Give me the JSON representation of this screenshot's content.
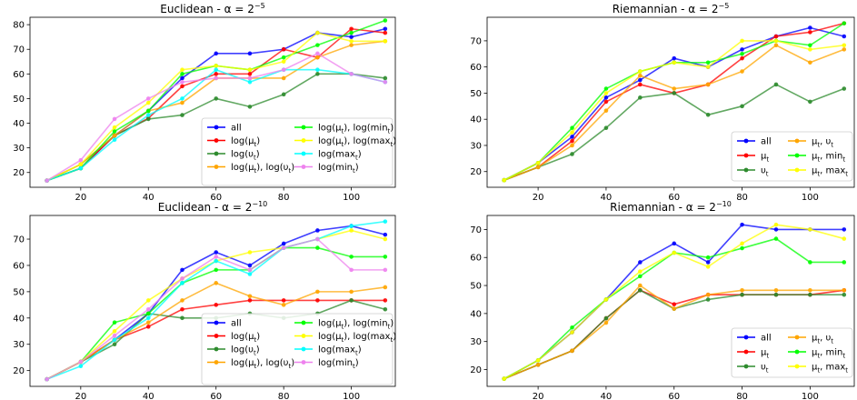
{
  "figure": {
    "panel_count": 4
  },
  "chart_data": [
    {
      "type": "line",
      "title": "Euclidean - α = 2",
      "title_sup": "−5",
      "x": [
        10,
        20,
        30,
        40,
        50,
        60,
        70,
        80,
        90,
        100,
        110
      ],
      "xlim": [
        5,
        113
      ],
      "ylim": [
        14,
        83
      ],
      "xticks": [
        20,
        40,
        60,
        80,
        100
      ],
      "yticks": [
        20,
        30,
        40,
        50,
        60,
        70,
        80
      ],
      "legend": {
        "position": "lower right",
        "ncol": 2
      },
      "series": [
        {
          "name": "all",
          "color": "#0000ff",
          "values": [
            16.7,
            21.7,
            35.0,
            45.0,
            58.3,
            68.3,
            68.3,
            70.0,
            76.7,
            75.0,
            78.3
          ]
        },
        {
          "name": "log(μ_t)",
          "color": "#ff0000",
          "values": [
            16.7,
            21.7,
            35.0,
            42.0,
            55.0,
            60.0,
            60.0,
            70.0,
            66.7,
            78.3,
            76.7
          ]
        },
        {
          "name": "log(υ_t)",
          "color": "#2e8b2e",
          "values": [
            16.7,
            23.3,
            35.0,
            41.7,
            43.3,
            50.0,
            46.7,
            51.7,
            60.0,
            60.0,
            58.3
          ]
        },
        {
          "name": "log(μ_t), log(υ_t)",
          "color": "#ffa500",
          "values": [
            16.7,
            23.3,
            35.0,
            45.0,
            48.3,
            58.3,
            58.3,
            58.3,
            66.7,
            71.7,
            73.3
          ]
        },
        {
          "name": "log(μ_t), log(min_t)",
          "color": "#00ff00",
          "values": [
            16.7,
            21.7,
            36.7,
            45.0,
            60.0,
            63.3,
            61.7,
            66.7,
            71.7,
            76.7,
            81.7
          ]
        },
        {
          "name": "log(μ_t), log(max_t)",
          "color": "#ffff00",
          "values": [
            16.7,
            23.3,
            38.3,
            48.3,
            61.7,
            63.3,
            61.7,
            65.0,
            76.7,
            73.3,
            73.3
          ]
        },
        {
          "name": "log(max_t)",
          "color": "#00ffff",
          "values": [
            16.7,
            21.7,
            33.3,
            43.3,
            50.0,
            61.7,
            56.7,
            61.7,
            61.7,
            60.0,
            56.7
          ]
        },
        {
          "name": "log(min_t)",
          "color": "#ee82ee",
          "values": [
            16.7,
            25.0,
            41.7,
            50.0,
            56.7,
            58.3,
            58.3,
            61.7,
            68.3,
            60.0,
            56.7
          ]
        }
      ]
    },
    {
      "type": "line",
      "title": "Riemannian - α = 2",
      "title_sup": "−5",
      "x": [
        10,
        20,
        30,
        40,
        50,
        60,
        70,
        80,
        90,
        100,
        110
      ],
      "xlim": [
        5,
        113
      ],
      "ylim": [
        14,
        79
      ],
      "xticks": [
        20,
        40,
        60,
        80,
        100
      ],
      "yticks": [
        20,
        30,
        40,
        50,
        60,
        70
      ],
      "legend": {
        "position": "lower right",
        "ncol": 2
      },
      "series": [
        {
          "name": "all",
          "color": "#0000ff",
          "values": [
            16.7,
            23.3,
            33.3,
            48.3,
            55.0,
            63.3,
            60.0,
            66.7,
            71.7,
            75.0,
            71.7
          ]
        },
        {
          "name": "μ_t",
          "color": "#ff0000",
          "values": [
            16.7,
            21.7,
            31.7,
            46.7,
            53.3,
            50.0,
            53.3,
            63.3,
            71.7,
            73.3,
            76.7
          ]
        },
        {
          "name": "υ_t",
          "color": "#2e8b2e",
          "values": [
            16.7,
            21.7,
            26.7,
            36.7,
            48.3,
            50.0,
            41.7,
            45.0,
            53.3,
            46.7,
            51.7
          ]
        },
        {
          "name": "μ_t, υ_t",
          "color": "#ffa500",
          "values": [
            16.7,
            21.7,
            30.0,
            43.3,
            56.7,
            51.7,
            53.3,
            58.3,
            68.3,
            61.7,
            66.7
          ]
        },
        {
          "name": "μ_t, min_t",
          "color": "#00ff00",
          "values": [
            16.7,
            23.3,
            36.7,
            51.7,
            58.3,
            61.7,
            61.7,
            65.0,
            70.0,
            68.3,
            76.7
          ]
        },
        {
          "name": "μ_t, max_t",
          "color": "#ffff00",
          "values": [
            16.7,
            23.3,
            35.0,
            50.0,
            58.3,
            61.7,
            60.0,
            70.0,
            70.0,
            66.7,
            68.3
          ]
        }
      ]
    },
    {
      "type": "line",
      "title": "Euclidean - α = 2",
      "title_sup": "−10",
      "x": [
        10,
        20,
        30,
        40,
        50,
        60,
        70,
        80,
        90,
        100,
        110
      ],
      "xlim": [
        5,
        113
      ],
      "ylim": [
        14,
        79
      ],
      "xticks": [
        20,
        40,
        60,
        80,
        100
      ],
      "yticks": [
        20,
        30,
        40,
        50,
        60,
        70
      ],
      "legend": {
        "position": "lower right",
        "ncol": 2
      },
      "series": [
        {
          "name": "all",
          "color": "#0000ff",
          "values": [
            16.7,
            23.3,
            31.7,
            41.7,
            58.3,
            65.0,
            60.0,
            68.3,
            73.3,
            75.0,
            71.7
          ]
        },
        {
          "name": "log(μ_t)",
          "color": "#ff0000",
          "values": [
            16.7,
            23.3,
            31.7,
            36.7,
            43.3,
            45.0,
            46.7,
            46.7,
            46.7,
            46.7,
            46.7
          ]
        },
        {
          "name": "log(υ_t)",
          "color": "#2e8b2e",
          "values": [
            16.7,
            23.3,
            30.0,
            41.7,
            40.0,
            40.0,
            41.7,
            40.0,
            41.7,
            46.7,
            43.3
          ]
        },
        {
          "name": "log(μ_t), log(υ_t)",
          "color": "#ffa500",
          "values": [
            16.7,
            23.3,
            31.7,
            38.3,
            46.7,
            53.3,
            48.3,
            45.0,
            50.0,
            50.0,
            51.7
          ]
        },
        {
          "name": "log(μ_t), log(min_t)",
          "color": "#00ff00",
          "values": [
            16.7,
            23.3,
            38.3,
            41.7,
            53.3,
            58.3,
            58.3,
            66.7,
            66.7,
            63.3,
            63.3
          ]
        },
        {
          "name": "log(μ_t), log(max_t)",
          "color": "#ffff00",
          "values": [
            16.7,
            23.3,
            35.0,
            46.7,
            55.0,
            61.7,
            65.0,
            66.7,
            70.0,
            73.3,
            70.0
          ]
        },
        {
          "name": "log(max_t)",
          "color": "#00ffff",
          "values": [
            16.7,
            21.7,
            31.7,
            40.0,
            53.3,
            61.7,
            56.7,
            66.7,
            70.0,
            75.0,
            76.7
          ]
        },
        {
          "name": "log(min_t)",
          "color": "#ee82ee",
          "values": [
            16.7,
            23.3,
            33.3,
            43.3,
            55.0,
            63.3,
            58.3,
            66.7,
            70.0,
            58.3,
            58.3
          ]
        }
      ]
    },
    {
      "type": "line",
      "title": "Riemannian - α = 2",
      "title_sup": "−10",
      "x": [
        10,
        20,
        30,
        40,
        50,
        60,
        70,
        80,
        90,
        100,
        110
      ],
      "xlim": [
        5,
        113
      ],
      "ylim": [
        14,
        75
      ],
      "xticks": [
        20,
        40,
        60,
        80,
        100
      ],
      "yticks": [
        20,
        30,
        40,
        50,
        60,
        70
      ],
      "legend": {
        "position": "lower right",
        "ncol": 2
      },
      "series": [
        {
          "name": "all",
          "color": "#0000ff",
          "values": [
            16.7,
            23.3,
            33.3,
            45.0,
            58.3,
            65.0,
            58.3,
            71.7,
            70.0,
            70.0,
            70.0
          ]
        },
        {
          "name": "μ_t",
          "color": "#ff0000",
          "values": [
            16.7,
            21.7,
            26.7,
            38.3,
            48.3,
            43.3,
            46.7,
            46.7,
            46.7,
            46.7,
            48.3
          ]
        },
        {
          "name": "υ_t",
          "color": "#2e8b2e",
          "values": [
            16.7,
            21.7,
            26.7,
            38.3,
            48.3,
            41.7,
            45.0,
            46.7,
            46.7,
            46.7,
            46.7
          ]
        },
        {
          "name": "μ_t, υ_t",
          "color": "#ffa500",
          "values": [
            16.7,
            21.7,
            26.7,
            36.7,
            50.0,
            41.7,
            46.7,
            48.3,
            48.3,
            48.3,
            48.3
          ]
        },
        {
          "name": "μ_t, min_t",
          "color": "#00ff00",
          "values": [
            16.7,
            23.3,
            35.0,
            45.0,
            53.3,
            61.7,
            60.0,
            63.3,
            66.7,
            58.3,
            58.3
          ]
        },
        {
          "name": "μ_t, max_t",
          "color": "#ffff00",
          "values": [
            16.7,
            23.3,
            33.3,
            45.0,
            55.0,
            61.7,
            56.7,
            65.0,
            71.7,
            70.0,
            66.7
          ]
        }
      ]
    }
  ]
}
